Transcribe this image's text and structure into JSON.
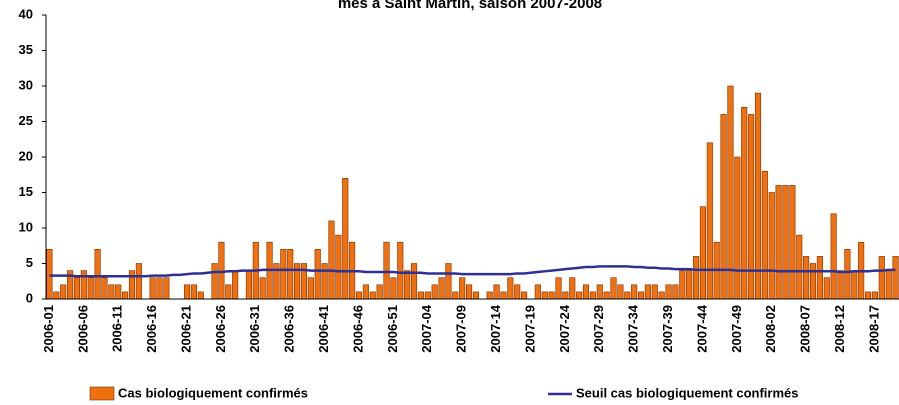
{
  "chart_data": {
    "type": "bar",
    "title": "mes à Saint Martin, saison 2007-2008",
    "categories": [
      "2006-01",
      null,
      null,
      null,
      null,
      "2006-06",
      null,
      null,
      null,
      null,
      "2006-11",
      null,
      null,
      null,
      null,
      "2006-16",
      null,
      null,
      null,
      null,
      "2006-21",
      null,
      null,
      null,
      null,
      "2006-26",
      null,
      null,
      null,
      null,
      "2006-31",
      null,
      null,
      null,
      null,
      "2006-36",
      null,
      null,
      null,
      null,
      "2006-41",
      null,
      null,
      null,
      null,
      "2006-46",
      null,
      null,
      null,
      null,
      "2006-51",
      null,
      null,
      null,
      null,
      "2007-04",
      null,
      null,
      null,
      null,
      "2007-09",
      null,
      null,
      null,
      null,
      "2007-14",
      null,
      null,
      null,
      null,
      "2007-19",
      null,
      null,
      null,
      null,
      "2007-24",
      null,
      null,
      null,
      null,
      "2007-29",
      null,
      null,
      null,
      null,
      "2007-34",
      null,
      null,
      null,
      null,
      "2007-39",
      null,
      null,
      null,
      null,
      "2007-44",
      null,
      null,
      null,
      null,
      "2007-49",
      null,
      null,
      null,
      null,
      "2008-02",
      null,
      null,
      null,
      null,
      "2008-07",
      null,
      null,
      null,
      null,
      "2008-12",
      null,
      null,
      null,
      null,
      "2008-17",
      null,
      null,
      null
    ],
    "series": [
      {
        "name": "Cas biologiquement confirmés",
        "type": "bar",
        "color": "#f07010",
        "values": [
          7,
          1,
          2,
          4,
          3,
          4,
          3,
          7,
          3,
          2,
          2,
          1,
          4,
          5,
          0,
          3,
          3,
          3,
          0,
          0,
          2,
          2,
          1,
          0,
          5,
          8,
          2,
          4,
          0,
          4,
          8,
          3,
          8,
          5,
          7,
          7,
          5,
          5,
          3,
          7,
          5,
          11,
          9,
          17,
          8,
          1,
          2,
          1,
          2,
          8,
          3,
          8,
          4,
          5,
          1,
          1,
          2,
          3,
          5,
          1,
          3,
          2,
          1,
          0,
          1,
          2,
          1,
          3,
          2,
          1,
          0,
          2,
          1,
          1,
          3,
          1,
          3,
          1,
          2,
          1,
          2,
          1,
          3,
          2,
          1,
          2,
          1,
          2,
          2,
          1,
          2,
          2,
          4,
          4,
          6,
          13,
          22,
          8,
          26,
          30,
          20,
          27,
          26,
          29,
          18,
          15,
          16,
          16,
          16,
          9,
          6,
          5,
          6,
          3,
          12,
          4,
          7,
          4,
          8,
          1,
          1,
          6,
          4,
          6
        ]
      },
      {
        "name": "Seuil cas biologiquement confirmés",
        "type": "line",
        "color": "#2e3192",
        "values": [
          3.3,
          3.3,
          3.3,
          3.3,
          3.2,
          3.2,
          3.2,
          3.2,
          3.2,
          3.2,
          3.2,
          3.2,
          3.2,
          3.2,
          3.2,
          3.3,
          3.3,
          3.3,
          3.4,
          3.4,
          3.5,
          3.6,
          3.6,
          3.7,
          3.8,
          3.8,
          3.9,
          3.9,
          4.0,
          4.0,
          4.0,
          4.1,
          4.1,
          4.1,
          4.1,
          4.1,
          4.1,
          4.1,
          4.0,
          4.0,
          4.0,
          4.0,
          3.9,
          3.9,
          3.9,
          3.9,
          3.8,
          3.8,
          3.8,
          3.8,
          3.8,
          3.7,
          3.7,
          3.7,
          3.7,
          3.6,
          3.6,
          3.6,
          3.6,
          3.6,
          3.5,
          3.5,
          3.5,
          3.5,
          3.5,
          3.5,
          3.5,
          3.5,
          3.6,
          3.6,
          3.7,
          3.8,
          3.9,
          4.0,
          4.1,
          4.2,
          4.3,
          4.4,
          4.5,
          4.5,
          4.6,
          4.6,
          4.6,
          4.6,
          4.6,
          4.5,
          4.5,
          4.4,
          4.4,
          4.3,
          4.3,
          4.2,
          4.2,
          4.2,
          4.1,
          4.1,
          4.1,
          4.1,
          4.1,
          4.1,
          4.0,
          4.0,
          4.0,
          4.0,
          4.0,
          4.0,
          3.9,
          3.9,
          3.9,
          3.9,
          3.9,
          3.9,
          3.9,
          3.9,
          3.9,
          3.8,
          3.8,
          3.9,
          3.9,
          3.9,
          4.0,
          4.0,
          4.1,
          4.1
        ]
      }
    ],
    "ylim": [
      0,
      40
    ],
    "yticks": [
      0,
      5,
      10,
      15,
      20,
      25,
      30,
      35,
      40
    ],
    "grid": false
  }
}
